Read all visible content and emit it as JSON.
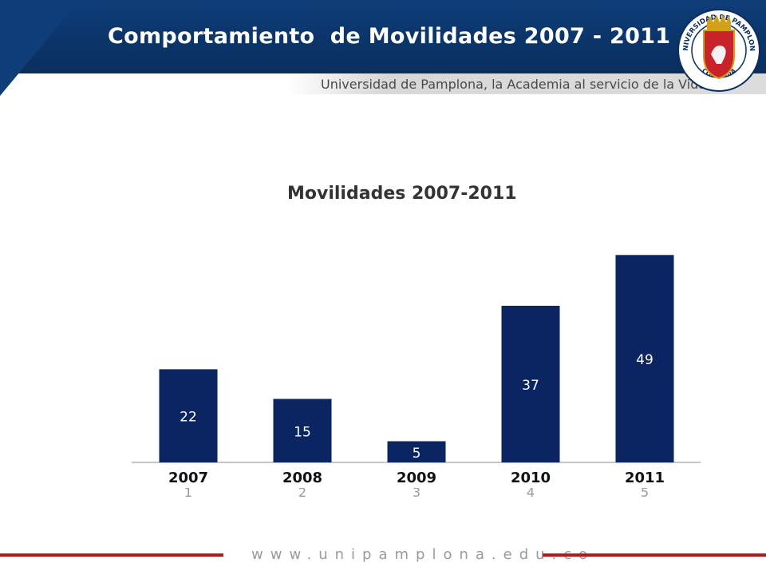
{
  "header": {
    "title": "Comportamiento  de Movilidades 2007 - 2011",
    "tagline": "Universidad de Pamplona, la Academia al servicio de la Vida",
    "seal_top_text": "UNIVERSIDAD DE PAMPLONA",
    "seal_bottom_text": "COLOMBIA"
  },
  "colors": {
    "banner": "#0b3468",
    "bar": "#0a2561",
    "accent_red": "#b31b1b"
  },
  "chart_data": {
    "type": "bar",
    "title": "Movilidades 2007-2011",
    "categories": [
      "2007",
      "2008",
      "2009",
      "2010",
      "2011"
    ],
    "hidden_tick_labels": [
      "1",
      "2",
      "3",
      "4",
      "5"
    ],
    "values": [
      22,
      15,
      5,
      37,
      49
    ],
    "ylim": [
      0,
      50
    ],
    "xlabel": "",
    "ylabel": "",
    "grid": false,
    "legend": "none"
  },
  "footer": {
    "url": "www.unipamplona.edu.co"
  }
}
